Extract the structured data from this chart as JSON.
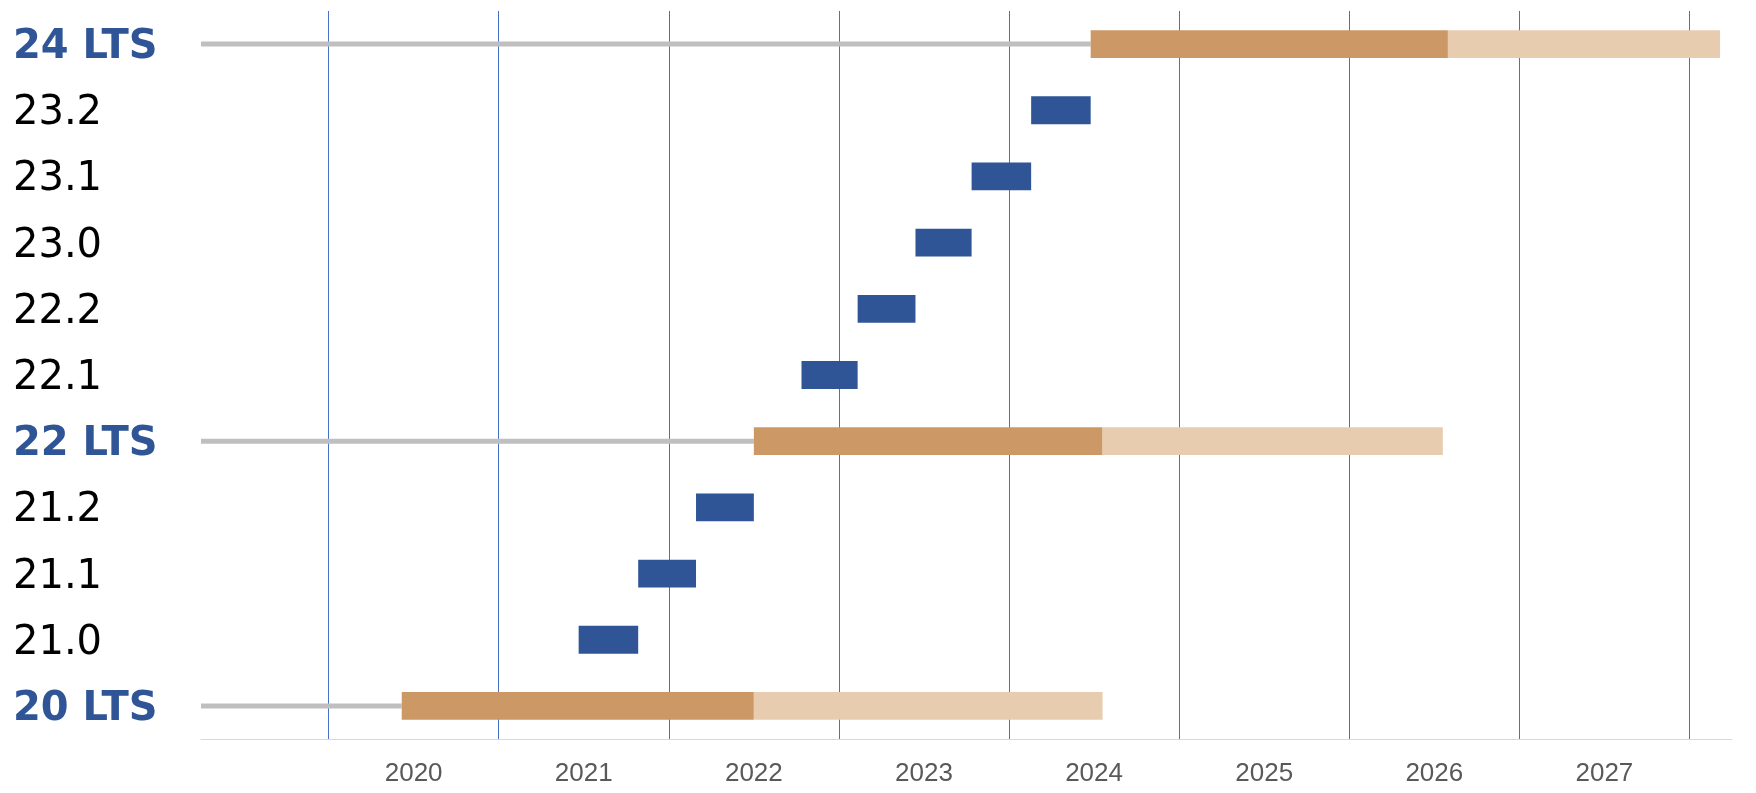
{
  "chart_data": {
    "type": "bar",
    "orientation": "horizontal",
    "categories": [
      "24 LTS",
      "23.2",
      "23.1",
      "23.0",
      "22.2",
      "22.1",
      "22 LTS",
      "21.2",
      "21.1",
      "21.0",
      "20 LTS"
    ],
    "series": [
      {
        "color": "#bfbfbf",
        "base": [
          2019.25,
          null,
          null,
          null,
          null,
          null,
          2019.25,
          null,
          null,
          null,
          2019.25
        ],
        "values": [
          5.23,
          null,
          null,
          null,
          null,
          null,
          3.25,
          null,
          null,
          null,
          1.18
        ]
      },
      {
        "colors": [
          "#cc9966",
          "#2f5597",
          "#2f5597",
          "#2f5597",
          "#2f5597",
          "#2f5597",
          "#cc9966",
          "#2f5597",
          "#2f5597",
          "#2f5597",
          "#cc9966"
        ],
        "base": [
          2024.48,
          2024.13,
          2023.78,
          2023.45,
          2023.11,
          2022.78,
          2022.5,
          2022.16,
          2021.82,
          2021.47,
          2020.43
        ],
        "values": [
          2.1,
          0.35,
          0.35,
          0.33,
          0.34,
          0.33,
          2.05,
          0.34,
          0.34,
          0.35,
          2.07
        ]
      },
      {
        "color": "#e8ccb0",
        "base": [
          2026.58,
          null,
          null,
          null,
          null,
          null,
          2024.55,
          null,
          null,
          null,
          2022.5
        ],
        "values": [
          1.6,
          null,
          null,
          null,
          null,
          null,
          2.0,
          null,
          null,
          null,
          2.05
        ]
      }
    ],
    "xlim": [
      2019.25,
      2028.25
    ],
    "xticks": [
      {
        "value": 2020,
        "label": null
      },
      {
        "value": 2020.5,
        "label": "2020"
      },
      {
        "value": 2021,
        "label": null
      },
      {
        "value": 2021.5,
        "label": "2021"
      },
      {
        "value": 2022,
        "label": null
      },
      {
        "value": 2022.5,
        "label": "2022"
      },
      {
        "value": 2023,
        "label": null
      },
      {
        "value": 2023.5,
        "label": "2023"
      },
      {
        "value": 2024,
        "label": null
      },
      {
        "value": 2024.5,
        "label": "2024"
      },
      {
        "value": 2025,
        "label": null
      },
      {
        "value": 2025.5,
        "label": "2025"
      },
      {
        "value": 2026,
        "label": null
      },
      {
        "value": 2026.5,
        "label": "2026"
      },
      {
        "value": 2027,
        "label": null
      },
      {
        "value": 2027.5,
        "label": "2027"
      },
      {
        "value": 2028,
        "label": null
      }
    ],
    "grid": "x"
  }
}
